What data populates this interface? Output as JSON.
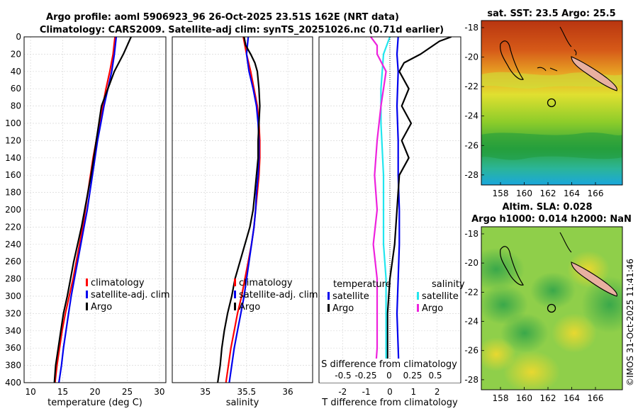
{
  "header": {
    "title_line1": "Argo profile: aoml 5906923_96 26-Oct-2025 23.51S 162E (NRT data)",
    "title_line2": "Climatology: CARS2009. Satellite-adj clim: synTS_20251026.nc (0.71d earlier)"
  },
  "side_text": "©IMOS 31-Oct-2025 11:41:46",
  "colors": {
    "red": "#ff0000",
    "blue": "#0000ee",
    "black": "#000000",
    "cyan": "#22e6ee",
    "magenta": "#ee22dd"
  },
  "chart_data": [
    {
      "type": "line",
      "name": "temperature",
      "xlabel": "temperature (deg C)",
      "xlim": [
        9,
        31
      ],
      "xticks": [
        10,
        15,
        20,
        25,
        30
      ],
      "ylim": [
        0,
        400
      ],
      "yticks": [
        0,
        20,
        40,
        60,
        80,
        100,
        120,
        140,
        160,
        180,
        200,
        220,
        240,
        260,
        280,
        300,
        320,
        340,
        360,
        380,
        400
      ],
      "legend": [
        "climatology",
        "satellite-adj. clim",
        "Argo"
      ],
      "series": [
        {
          "name": "climatology",
          "color": "red",
          "depth": [
            0,
            20,
            40,
            60,
            80,
            100,
            120,
            140,
            160,
            180,
            200,
            220,
            240,
            260,
            280,
            300,
            320,
            340,
            360,
            380,
            400
          ],
          "values": [
            23.1,
            22.8,
            22.3,
            21.7,
            21.2,
            20.7,
            20.2,
            19.7,
            19.3,
            18.9,
            18.5,
            18.1,
            17.6,
            17.1,
            16.6,
            16.0,
            15.4,
            14.9,
            14.5,
            14.1,
            13.8
          ]
        },
        {
          "name": "satellite-adj. clim",
          "color": "blue",
          "depth": [
            0,
            20,
            40,
            60,
            80,
            100,
            120,
            140,
            160,
            180,
            200,
            220,
            240,
            260,
            280,
            300,
            320,
            340,
            360,
            380,
            400
          ],
          "values": [
            23.3,
            23.0,
            22.6,
            22.0,
            21.4,
            20.9,
            20.4,
            20.0,
            19.6,
            19.2,
            18.8,
            18.3,
            17.8,
            17.3,
            16.8,
            16.3,
            15.9,
            15.5,
            15.1,
            14.8,
            14.4
          ]
        },
        {
          "name": "Argo",
          "color": "black",
          "depth": [
            0,
            10,
            20,
            30,
            40,
            60,
            80,
            100,
            120,
            140,
            160,
            180,
            200,
            220,
            240,
            260,
            280,
            300,
            320,
            340,
            360,
            380,
            400
          ],
          "values": [
            25.6,
            25.0,
            24.4,
            23.7,
            23.0,
            22.0,
            21.0,
            20.6,
            20.2,
            19.8,
            19.4,
            18.9,
            18.4,
            17.9,
            17.3,
            16.7,
            16.2,
            15.7,
            15.1,
            14.7,
            14.3,
            13.9,
            13.7
          ]
        }
      ]
    },
    {
      "type": "line",
      "name": "salinity",
      "xlabel": "salinity",
      "xlim": [
        34.6,
        36.3
      ],
      "xticks": [
        35,
        35.5,
        36
      ],
      "ylim": [
        0,
        400
      ],
      "legend": [
        "climatology",
        "satellite-adj. clim",
        "Argo"
      ],
      "series": [
        {
          "name": "climatology",
          "color": "red",
          "depth": [
            0,
            20,
            40,
            60,
            80,
            100,
            120,
            140,
            160,
            180,
            200,
            220,
            240,
            260,
            280,
            300,
            320,
            340,
            360,
            380,
            400
          ],
          "values": [
            35.46,
            35.5,
            35.55,
            35.59,
            35.63,
            35.65,
            35.66,
            35.66,
            35.65,
            35.63,
            35.61,
            35.59,
            35.56,
            35.52,
            35.48,
            35.44,
            35.39,
            35.35,
            35.31,
            35.28,
            35.25
          ]
        },
        {
          "name": "satellite-adj. clim",
          "color": "blue",
          "depth": [
            0,
            20,
            40,
            60,
            80,
            100,
            120,
            140,
            160,
            180,
            200,
            220,
            240,
            260,
            280,
            300,
            320,
            340,
            360,
            380,
            400
          ],
          "values": [
            35.52,
            35.5,
            35.53,
            35.58,
            35.62,
            35.64,
            35.65,
            35.65,
            35.64,
            35.62,
            35.61,
            35.59,
            35.56,
            35.53,
            35.5,
            35.47,
            35.43,
            35.39,
            35.35,
            35.32,
            35.29
          ]
        },
        {
          "name": "Argo",
          "color": "black",
          "depth": [
            0,
            10,
            20,
            30,
            40,
            60,
            80,
            100,
            120,
            140,
            160,
            180,
            200,
            220,
            240,
            260,
            280,
            300,
            320,
            340,
            360,
            380,
            400
          ],
          "values": [
            35.47,
            35.49,
            35.55,
            35.6,
            35.63,
            35.65,
            35.66,
            35.65,
            35.64,
            35.64,
            35.62,
            35.6,
            35.58,
            35.54,
            35.48,
            35.42,
            35.36,
            35.32,
            35.27,
            35.23,
            35.2,
            35.18,
            35.15
          ]
        }
      ]
    },
    {
      "type": "line",
      "name": "difference",
      "xlabel": "T difference from climatology",
      "xlabel_top": "S difference from climatology",
      "xlim": [
        -3,
        3
      ],
      "xticks": [
        -2,
        -1,
        0,
        1,
        2
      ],
      "top_ticks": [
        "-0.5",
        "-0.25",
        "0",
        "0.25",
        "0.5"
      ],
      "ylim": [
        0,
        400
      ],
      "legend_t_title": "temperature",
      "legend_s_title": "salinity",
      "legend": [
        "satellite",
        "Argo",
        "satellite",
        "Argo"
      ],
      "series": [
        {
          "name": "T satellite",
          "color": "blue",
          "depth": [
            0,
            20,
            40,
            80,
            120,
            160,
            200,
            240,
            280,
            320,
            360,
            400
          ],
          "values": [
            0.35,
            0.3,
            0.35,
            0.3,
            0.35,
            0.35,
            0.4,
            0.4,
            0.35,
            0.3,
            0.35,
            0.4
          ]
        },
        {
          "name": "T Argo",
          "color": "black",
          "depth": [
            0,
            5,
            20,
            30,
            40,
            60,
            80,
            100,
            120,
            140,
            160,
            200,
            240,
            280,
            320,
            360,
            400
          ],
          "values": [
            2.6,
            2.1,
            1.3,
            0.6,
            0.4,
            0.8,
            0.5,
            0.9,
            0.5,
            0.8,
            0.4,
            0.3,
            0.2,
            0.0,
            -0.1,
            -0.1,
            -0.1
          ]
        },
        {
          "name": "S satellite",
          "color": "cyan",
          "depth": [
            0,
            20,
            60,
            100,
            160,
            200,
            240,
            280,
            320,
            360,
            400
          ],
          "values": [
            0.0,
            -0.05,
            -0.07,
            -0.07,
            -0.05,
            -0.05,
            -0.05,
            -0.03,
            -0.03,
            -0.03,
            -0.03
          ]
        },
        {
          "name": "S Argo",
          "color": "magenta",
          "depth": [
            0,
            10,
            20,
            40,
            80,
            120,
            160,
            200,
            240,
            280,
            320,
            360,
            400
          ],
          "values": [
            -0.15,
            -0.1,
            -0.1,
            -0.03,
            -0.07,
            -0.1,
            -0.12,
            -0.1,
            -0.13,
            -0.1,
            -0.1,
            -0.1,
            -0.12
          ]
        }
      ]
    },
    {
      "type": "heatmap",
      "name": "sst_map",
      "title": "sat. SST: 23.5 Argo: 25.5",
      "xticks": [
        "158",
        "160",
        "162",
        "164",
        "166"
      ],
      "yticks": [
        "-18",
        "-20",
        "-22",
        "-24",
        "-26",
        "-28"
      ],
      "marker": {
        "lon": 162,
        "lat": -23.5
      }
    },
    {
      "type": "heatmap",
      "name": "sla_map",
      "title_line1": "Altim. SLA: 0.028",
      "title_line2": "Argo h1000: 0.014 h2000: NaN",
      "xticks": [
        "158",
        "160",
        "162",
        "164",
        "166"
      ],
      "yticks": [
        "-18",
        "-20",
        "-22",
        "-24",
        "-26",
        "-28"
      ],
      "marker": {
        "lon": 162,
        "lat": -23.5
      }
    }
  ]
}
